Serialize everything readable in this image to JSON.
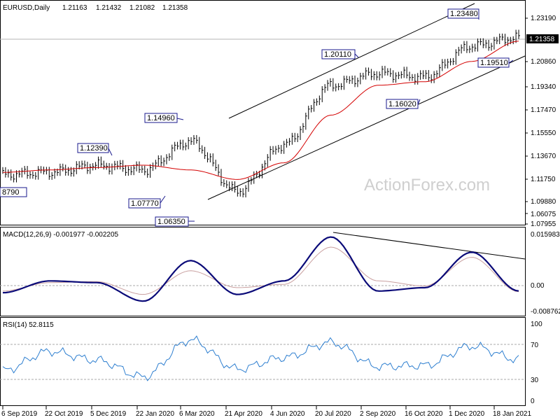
{
  "header": {
    "symbol": "EURUSD,Daily",
    "open": "1.21163",
    "high": "1.21432",
    "low": "1.21082",
    "close": "1.21358"
  },
  "watermark": "ActionForex.com",
  "price_axis": {
    "ticks": [
      "1.23190",
      "1.20860",
      "1.19340",
      "1.17470",
      "1.15550",
      "1.13670",
      "1.11750",
      "1.09880",
      "1.07955",
      "1.06075"
    ],
    "current_label": "1.21358"
  },
  "macd_panel": {
    "title": "MACD(12,26,9) -0.001977 -0.002205",
    "ticks": [
      "0.015983",
      "0.00",
      "-0.008762"
    ]
  },
  "rsi_panel": {
    "title": "RSI(14) 52.8115",
    "ticks": [
      "100",
      "70",
      "30",
      "0"
    ]
  },
  "annotations": [
    {
      "label": "8790",
      "value": 1.0879
    },
    {
      "label": "1.12390",
      "value": 1.1239
    },
    {
      "label": "1.07770",
      "value": 1.0777
    },
    {
      "label": "1.14960",
      "value": 1.1496
    },
    {
      "label": "1.06350",
      "value": 1.0635
    },
    {
      "label": "1.20110",
      "value": 1.2011
    },
    {
      "label": "1.16020",
      "value": 1.1602
    },
    {
      "label": "1.23480",
      "value": 1.2348
    },
    {
      "label": "1.19510",
      "value": 1.1951
    }
  ],
  "x_axis": {
    "labels": [
      "6 Sep 2019",
      "22 Oct 2019",
      "5 Dec 2019",
      "22 Jan 2020",
      "6 Mar 2020",
      "21 Apr 2020",
      "4 Jun 2020",
      "20 Jul 2020",
      "2 Sep 2020",
      "16 Oct 2020",
      "1 Dec 2020",
      "18 Jan 2021"
    ]
  },
  "colors": {
    "price_bars": "#000000",
    "moving_average": "#d40000",
    "macd_line": "#0a0a78",
    "signal_line": "#c9a0a0",
    "rsi_line": "#2e7fd0",
    "trend_lines": "#000000",
    "annotation_border": "#1a1a8c"
  },
  "chart_data": [
    {
      "type": "line",
      "panel": "price",
      "x": [
        "6 Sep 2019",
        "22 Oct 2019",
        "5 Dec 2019",
        "22 Jan 2020",
        "6 Mar 2020",
        "21 Apr 2020",
        "4 Jun 2020",
        "20 Jul 2020",
        "2 Sep 2020",
        "16 Oct 2020",
        "1 Dec 2020",
        "18 Jan 2021"
      ],
      "series": [
        {
          "values": [
            1.1,
            1.102,
            1.108,
            1.104,
            1.128,
            1.086,
            1.125,
            1.175,
            1.185,
            1.182,
            1.208,
            1.215
          ]
        },
        {
          "values": [
            1.102,
            1.104,
            1.106,
            1.108,
            1.104,
            1.096,
            1.11,
            1.15,
            1.175,
            1.178,
            1.195,
            1.212
          ]
        }
      ],
      "ylim": [
        1.0575,
        1.2465
      ],
      "grid": false
    },
    {
      "type": "line",
      "panel": "macd",
      "x": [
        "6 Sep 2019",
        "22 Oct 2019",
        "5 Dec 2019",
        "22 Jan 2020",
        "6 Mar 2020",
        "21 Apr 2020",
        "4 Jun 2020",
        "20 Jul 2020",
        "2 Sep 2020",
        "16 Oct 2020",
        "1 Dec 2020",
        "18 Jan 2021"
      ],
      "series": [
        {
          "values": [
            -0.0025,
            0.001,
            0.0005,
            -0.005,
            0.007,
            -0.003,
            0.001,
            0.014,
            -0.002,
            -0.001,
            0.0095,
            -0.001977
          ]
        },
        {
          "values": [
            -0.002,
            0.0005,
            0.0008,
            -0.003,
            0.004,
            -0.001,
            0.0,
            0.011,
            0.001,
            -0.0005,
            0.008,
            -0.002205
          ]
        }
      ],
      "ylim": [
        -0.0095,
        0.0168
      ],
      "grid": false
    },
    {
      "type": "line",
      "panel": "rsi",
      "x": [
        "6 Sep 2019",
        "22 Oct 2019",
        "5 Dec 2019",
        "22 Jan 2020",
        "6 Mar 2020",
        "21 Apr 2020",
        "4 Jun 2020",
        "20 Jul 2020",
        "2 Sep 2020",
        "16 Oct 2020",
        "1 Dec 2020",
        "18 Jan 2021"
      ],
      "series": [
        {
          "values": [
            40,
            62,
            52,
            33,
            75,
            42,
            55,
            72,
            45,
            46,
            68,
            52.8115
          ]
        }
      ],
      "ylim": [
        0,
        100
      ],
      "grid": false
    }
  ]
}
